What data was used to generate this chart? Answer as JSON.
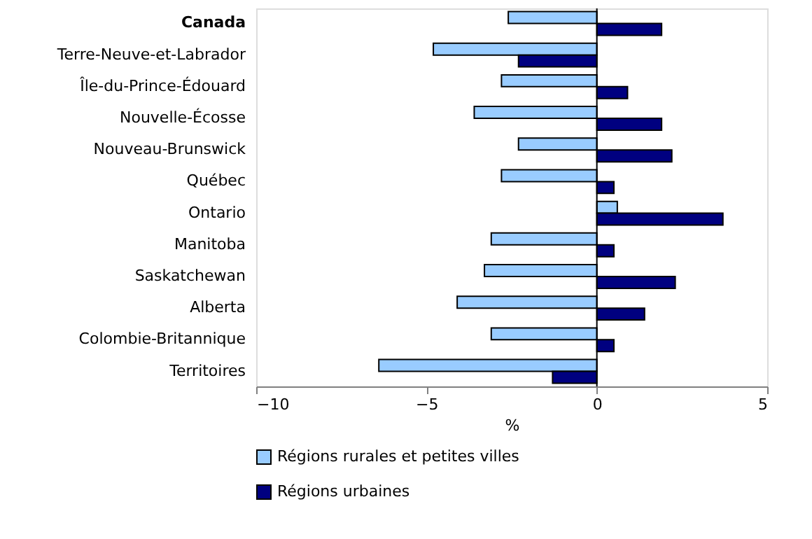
{
  "chart_data": {
    "type": "bar",
    "orientation": "horizontal",
    "xlabel": "%",
    "categories": [
      "Canada",
      "Terre-Neuve-et-Labrador",
      "Île-du-Prince-Édouard",
      "Nouvelle-Écosse",
      "Nouveau-Brunswick",
      "Québec",
      "Ontario",
      "Manitoba",
      "Saskatchewan",
      "Alberta",
      "Colombie-Britannique",
      "Territoires"
    ],
    "series": [
      {
        "name": "Régions rurales et petites villes",
        "color": "#99ccff",
        "values": [
          -2.6,
          -4.8,
          -2.8,
          -3.6,
          -2.3,
          -2.8,
          0.6,
          -3.1,
          -3.3,
          -4.1,
          -3.1,
          -6.4
        ]
      },
      {
        "name": "Régions urbaines",
        "color": "#000080",
        "values": [
          1.9,
          -2.3,
          0.9,
          1.9,
          2.2,
          0.5,
          3.7,
          0.5,
          2.3,
          1.4,
          0.5,
          -1.3
        ]
      }
    ],
    "xlim": [
      -10,
      5
    ],
    "xticks": [
      -10,
      -5,
      0,
      5
    ],
    "grid": false,
    "legend": "bottom",
    "ref_lines": [
      {
        "axis": "x",
        "value": 0,
        "color": "#000000"
      }
    ]
  }
}
